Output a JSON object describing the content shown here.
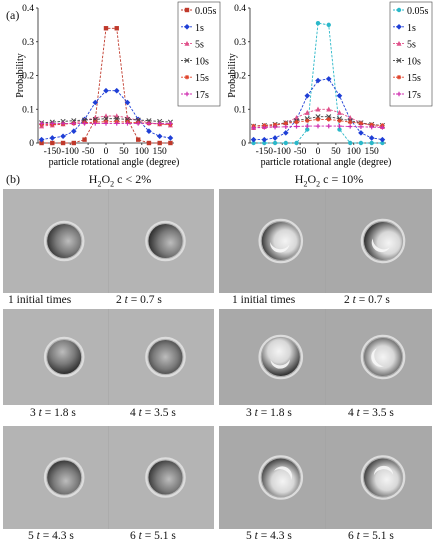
{
  "panel_a_label": "(a)",
  "panel_b_label": "(b)",
  "chart_data": [
    {
      "type": "line",
      "xlabel": "particle rotational angle (degree)",
      "ylabel": "Probability",
      "x": [
        -180,
        -150,
        -120,
        -90,
        -60,
        -30,
        0,
        30,
        60,
        90,
        120,
        150,
        180
      ],
      "xticks": [
        "-150",
        "-100",
        "-50",
        "0",
        "50",
        "100",
        "150"
      ],
      "yticks": [
        "0",
        "0.1",
        "0.2",
        "0.3",
        "0.4"
      ],
      "xlim": [
        -190,
        190
      ],
      "ylim": [
        0,
        0.4
      ],
      "legend_position": "right",
      "series": [
        {
          "name": "0.05s",
          "color": "#c0392b",
          "marker": "square",
          "values": [
            0.0,
            0.0,
            0.0,
            0.0,
            0.01,
            0.07,
            0.34,
            0.34,
            0.07,
            0.01,
            0.0,
            0.0,
            0.0
          ]
        },
        {
          "name": "1s",
          "color": "#1f3fd6",
          "marker": "diamond",
          "values": [
            0.01,
            0.015,
            0.02,
            0.035,
            0.07,
            0.12,
            0.155,
            0.155,
            0.12,
            0.07,
            0.035,
            0.02,
            0.015
          ]
        },
        {
          "name": "5s",
          "color": "#e0508a",
          "marker": "triangle",
          "values": [
            0.05,
            0.053,
            0.056,
            0.06,
            0.067,
            0.075,
            0.08,
            0.08,
            0.075,
            0.067,
            0.06,
            0.056,
            0.053
          ]
        },
        {
          "name": "10s",
          "color": "#444444",
          "marker": "x",
          "values": [
            0.06,
            0.062,
            0.064,
            0.066,
            0.068,
            0.07,
            0.072,
            0.072,
            0.07,
            0.068,
            0.066,
            0.064,
            0.062
          ]
        },
        {
          "name": "15s",
          "color": "#e0442c",
          "marker": "star",
          "values": [
            0.055,
            0.055,
            0.056,
            0.058,
            0.06,
            0.062,
            0.063,
            0.063,
            0.062,
            0.06,
            0.058,
            0.056,
            0.055
          ]
        },
        {
          "name": "17s",
          "color": "#d02fb0",
          "marker": "plus",
          "values": [
            0.058,
            0.058,
            0.058,
            0.058,
            0.058,
            0.058,
            0.058,
            0.058,
            0.058,
            0.058,
            0.058,
            0.058,
            0.058
          ]
        }
      ]
    },
    {
      "type": "line",
      "xlabel": "particle rotational angle (degree)",
      "ylabel": "Probability",
      "x": [
        -180,
        -150,
        -120,
        -90,
        -60,
        -30,
        0,
        30,
        60,
        90,
        120,
        150,
        180
      ],
      "xticks": [
        "-150",
        "-100",
        "-50",
        "0",
        "50",
        "100",
        "150"
      ],
      "yticks": [
        "0",
        "0.1",
        "0.2",
        "0.3",
        "0.4"
      ],
      "xlim": [
        -190,
        190
      ],
      "ylim": [
        0,
        0.4
      ],
      "legend_position": "right",
      "series": [
        {
          "name": "0.05s",
          "color": "#2bb8c9",
          "marker": "circle",
          "values": [
            0.0,
            0.0,
            0.0,
            0.0,
            0.0,
            0.04,
            0.355,
            0.35,
            0.04,
            0.0,
            0.0,
            0.0,
            0.0
          ]
        },
        {
          "name": "1s",
          "color": "#1f3fd6",
          "marker": "diamond",
          "values": [
            0.01,
            0.01,
            0.015,
            0.03,
            0.07,
            0.14,
            0.185,
            0.19,
            0.14,
            0.07,
            0.03,
            0.015,
            0.01
          ]
        },
        {
          "name": "5s",
          "color": "#e0508a",
          "marker": "triangle",
          "values": [
            0.045,
            0.048,
            0.052,
            0.06,
            0.075,
            0.09,
            0.1,
            0.1,
            0.09,
            0.075,
            0.06,
            0.052,
            0.048
          ]
        },
        {
          "name": "10s",
          "color": "#444444",
          "marker": "x",
          "values": [
            0.05,
            0.052,
            0.055,
            0.06,
            0.066,
            0.072,
            0.078,
            0.078,
            0.072,
            0.066,
            0.06,
            0.055,
            0.052
          ]
        },
        {
          "name": "15s",
          "color": "#e0442c",
          "marker": "star",
          "values": [
            0.05,
            0.052,
            0.054,
            0.058,
            0.062,
            0.066,
            0.07,
            0.07,
            0.066,
            0.062,
            0.058,
            0.054,
            0.052
          ]
        },
        {
          "name": "17s",
          "color": "#d02fb0",
          "marker": "plus",
          "values": [
            0.045,
            0.046,
            0.047,
            0.048,
            0.049,
            0.05,
            0.05,
            0.05,
            0.05,
            0.049,
            0.048,
            0.047,
            0.046
          ]
        }
      ]
    }
  ],
  "panel_b": {
    "left_header": {
      "pre": "H",
      "sub1": "2",
      "mid": "O",
      "sub2": "2",
      "post": " c < 2%"
    },
    "right_header": {
      "pre": "H",
      "sub1": "2",
      "mid": "O",
      "sub2": "2",
      "post": " c = 10%"
    },
    "left_captions": [
      {
        "num": "1",
        "rest": " initial times"
      },
      {
        "num": "2",
        "t": "t",
        "rest": " = 0.7 s"
      },
      {
        "num": "3",
        "t": "t",
        "rest": " = 1.8 s"
      },
      {
        "num": "4",
        "t": "t",
        "rest": " = 3.5 s"
      },
      {
        "num": "5",
        "t": "t",
        "rest": " = 4.3 s"
      },
      {
        "num": "6",
        "t": "t",
        "rest": " = 5.1 s"
      }
    ],
    "right_captions": [
      {
        "num": "1",
        "rest": " initial times"
      },
      {
        "num": "2",
        "t": "t",
        "rest": " = 0.7 s"
      },
      {
        "num": "3",
        "t": "t",
        "rest": " = 1.8 s"
      },
      {
        "num": "4",
        "t": "t",
        "rest": " = 3.5 s"
      },
      {
        "num": "5",
        "t": "t",
        "rest": " = 4.3 s"
      },
      {
        "num": "6",
        "t": "t",
        "rest": " = 5.1 s"
      }
    ],
    "colors": {
      "left_bg": "#b4b4b4",
      "right_bg": "#a9a9a9",
      "particle_dark": "#2e2e2e",
      "particle_light": "#f4f4f4"
    }
  }
}
